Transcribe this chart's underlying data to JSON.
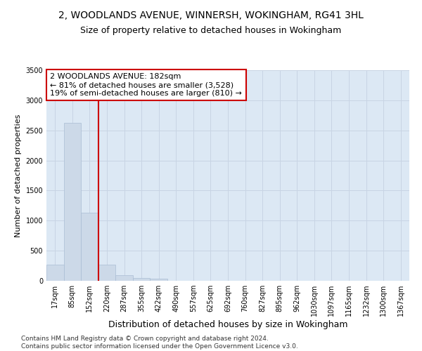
{
  "title": "2, WOODLANDS AVENUE, WINNERSH, WOKINGHAM, RG41 3HL",
  "subtitle": "Size of property relative to detached houses in Wokingham",
  "xlabel": "Distribution of detached houses by size in Wokingham",
  "ylabel": "Number of detached properties",
  "bar_color": "#ccd9e8",
  "bar_edge_color": "#aabdd4",
  "vline_color": "#cc0000",
  "annotation_text": "2 WOODLANDS AVENUE: 182sqm\n← 81% of detached houses are smaller (3,528)\n19% of semi-detached houses are larger (810) →",
  "annotation_box_color": "white",
  "annotation_box_edge": "#cc0000",
  "categories": [
    "17sqm",
    "85sqm",
    "152sqm",
    "220sqm",
    "287sqm",
    "355sqm",
    "422sqm",
    "490sqm",
    "557sqm",
    "625sqm",
    "692sqm",
    "760sqm",
    "827sqm",
    "895sqm",
    "962sqm",
    "1030sqm",
    "1097sqm",
    "1165sqm",
    "1232sqm",
    "1300sqm",
    "1367sqm"
  ],
  "values": [
    270,
    2620,
    1130,
    270,
    90,
    50,
    30,
    0,
    0,
    0,
    0,
    0,
    0,
    0,
    0,
    0,
    0,
    0,
    0,
    0,
    0
  ],
  "ylim": [
    0,
    3500
  ],
  "yticks": [
    0,
    500,
    1000,
    1500,
    2000,
    2500,
    3000,
    3500
  ],
  "grid_color": "#c8d4e4",
  "background_color": "#dce8f4",
  "footer": "Contains HM Land Registry data © Crown copyright and database right 2024.\nContains public sector information licensed under the Open Government Licence v3.0.",
  "title_fontsize": 10,
  "subtitle_fontsize": 9,
  "xlabel_fontsize": 9,
  "ylabel_fontsize": 8,
  "tick_fontsize": 7,
  "footer_fontsize": 6.5,
  "annotation_fontsize": 8
}
